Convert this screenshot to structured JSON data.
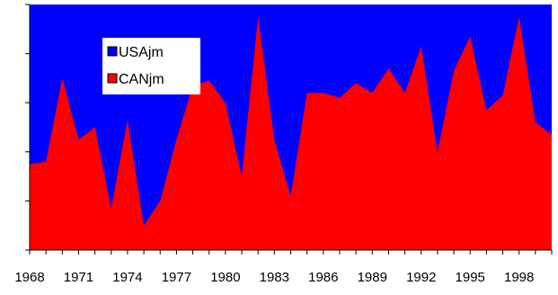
{
  "chart_data": {
    "type": "area",
    "stacked": true,
    "normalized": true,
    "x": [
      1968,
      1969,
      1970,
      1971,
      1972,
      1973,
      1974,
      1975,
      1976,
      1977,
      1978,
      1979,
      1980,
      1981,
      1982,
      1983,
      1984,
      1985,
      1986,
      1987,
      1988,
      1989,
      1990,
      1991,
      1992,
      1993,
      1994,
      1995,
      1996,
      1997,
      1998,
      1999,
      2000
    ],
    "x_tick_labels": [
      "1968",
      "1971",
      "1974",
      "1977",
      "1980",
      "1983",
      "1986",
      "1989",
      "1992",
      "1995",
      "1998"
    ],
    "series": [
      {
        "name": "USAjm",
        "color": "#0000ff",
        "share": [
          0.65,
          0.64,
          0.3,
          0.55,
          0.5,
          0.83,
          0.47,
          0.9,
          0.8,
          0.55,
          0.33,
          0.31,
          0.4,
          0.7,
          0.05,
          0.55,
          0.78,
          0.36,
          0.36,
          0.38,
          0.32,
          0.36,
          0.26,
          0.36,
          0.17,
          0.6,
          0.27,
          0.13,
          0.43,
          0.37,
          0.05,
          0.48,
          0.53
        ]
      },
      {
        "name": "CANjm",
        "color": "#ff0000",
        "share": [
          0.35,
          0.36,
          0.7,
          0.45,
          0.5,
          0.17,
          0.53,
          0.1,
          0.2,
          0.45,
          0.67,
          0.69,
          0.6,
          0.3,
          0.95,
          0.45,
          0.22,
          0.64,
          0.64,
          0.62,
          0.68,
          0.64,
          0.74,
          0.64,
          0.83,
          0.4,
          0.73,
          0.87,
          0.57,
          0.63,
          0.95,
          0.52,
          0.47
        ]
      }
    ],
    "y_axis": {
      "range": [
        0,
        1
      ],
      "ticks": [
        0,
        0.2,
        0.4,
        0.6,
        0.8,
        1.0
      ],
      "tick_labels_shown": false
    },
    "legend": {
      "position": "upper-left-inside",
      "entries": [
        "USAjm",
        "CANjm"
      ]
    },
    "grid": false,
    "title": "",
    "xlabel": "",
    "ylabel": ""
  }
}
